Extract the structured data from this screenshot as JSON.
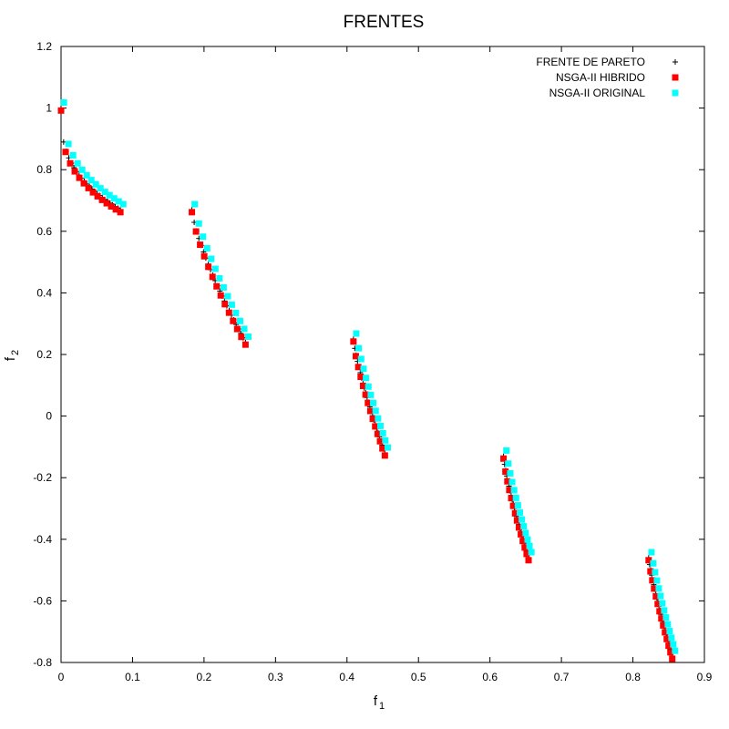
{
  "chart_data": {
    "type": "scatter",
    "title": "FRENTES",
    "xlabel": {
      "base": "f",
      "sub": "1"
    },
    "ylabel": {
      "base": "f",
      "sub": "2"
    },
    "xlim": [
      0,
      0.9
    ],
    "ylim": [
      -0.8,
      1.2
    ],
    "x_ticks": [
      0,
      0.1,
      0.2,
      0.3,
      0.4,
      0.5,
      0.6,
      0.7,
      0.8,
      0.9
    ],
    "x_tick_labels": [
      "0",
      "0.1",
      "0.2",
      "0.3",
      "0.4",
      "0.5",
      "0.6",
      "0.7",
      "0.8",
      "0.9"
    ],
    "y_ticks": [
      -0.8,
      -0.6,
      -0.4,
      -0.2,
      0,
      0.2,
      0.4,
      0.6,
      0.8,
      1,
      1.2
    ],
    "y_tick_labels": [
      "-0.8",
      "-0.6",
      "-0.4",
      "-0.2",
      "0",
      "0.2",
      "0.4",
      "0.6",
      "0.8",
      "1",
      "1.2"
    ],
    "grid": false,
    "legend_position": "top-right",
    "segments": [
      {
        "x": [
          0.0,
          0.083
        ],
        "y": [
          1.0,
          0.67
        ],
        "shape": 0.35
      },
      {
        "x": [
          0.183,
          0.258
        ],
        "y": [
          0.67,
          0.24
        ],
        "shape": 0.75
      },
      {
        "x": [
          0.409,
          0.453
        ],
        "y": [
          0.25,
          -0.12
        ],
        "shape": 0.8
      },
      {
        "x": [
          0.619,
          0.654
        ],
        "y": [
          -0.13,
          -0.46
        ],
        "shape": 0.8
      },
      {
        "x": [
          0.822,
          0.855
        ],
        "y": [
          -0.46,
          -0.78
        ],
        "shape": 0.85
      }
    ],
    "series": [
      {
        "name": "FRENTE DE PARETO",
        "marker": "plus",
        "color": "#000000",
        "points_per_segment": 24,
        "offset": [
          0,
          0
        ]
      },
      {
        "name": "NSGA-II HIBRIDO",
        "marker": "square",
        "color": "#ff0000",
        "points_per_segment": 14,
        "offset": [
          0,
          -0.008
        ]
      },
      {
        "name": "NSGA-II ORIGINAL",
        "marker": "square",
        "color": "#00ffff",
        "points_per_segment": 14,
        "offset": [
          0.004,
          0.018
        ]
      }
    ]
  }
}
